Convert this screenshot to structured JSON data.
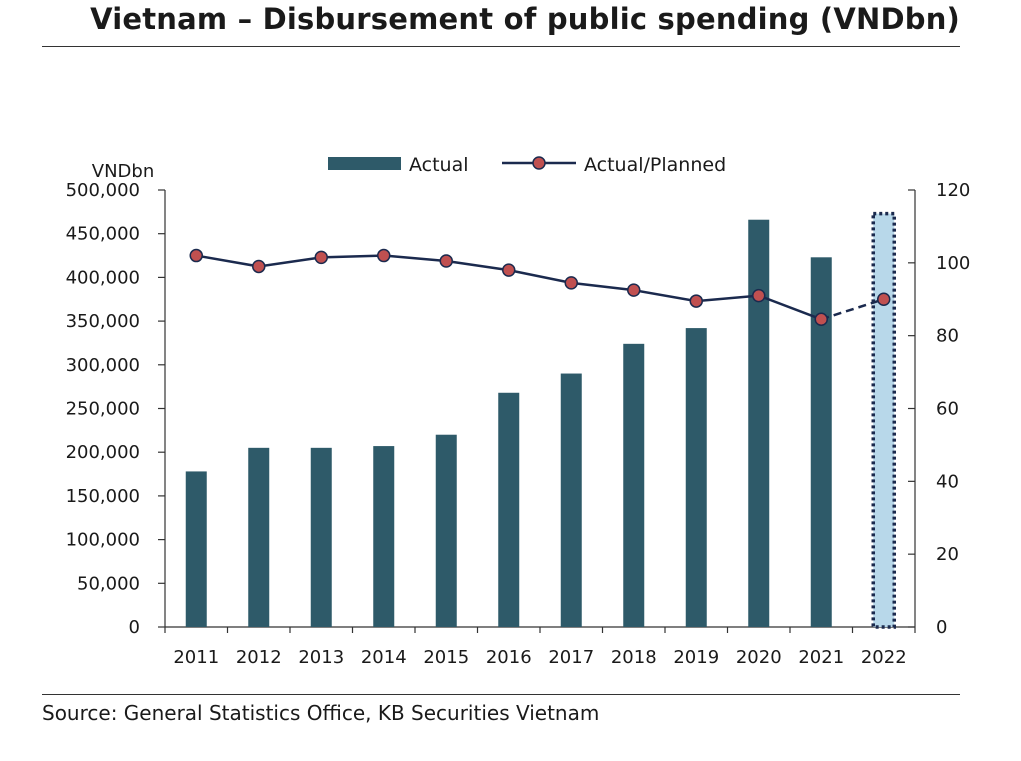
{
  "title": "Vietnam – Disbursement of public spending (VNDbn)",
  "source": "Source: General Statistics Office, KB Securities Vietnam",
  "chart_data": {
    "type": "bar",
    "title": "Vietnam – Disbursement of public spending (VNDbn)",
    "categories": [
      "2011",
      "2012",
      "2013",
      "2014",
      "2015",
      "2016",
      "2017",
      "2018",
      "2019",
      "2020",
      "2021",
      "2022"
    ],
    "y_unit_label": "VNDbn",
    "ylim": [
      0,
      500000
    ],
    "yticks": [
      "0",
      "50,000",
      "100,000",
      "150,000",
      "200,000",
      "250,000",
      "300,000",
      "350,000",
      "400,000",
      "450,000",
      "500,000"
    ],
    "y2lim": [
      0,
      120
    ],
    "y2ticks": [
      "0",
      "20",
      "40",
      "60",
      "80",
      "100",
      "120"
    ],
    "legend_position": "top-center",
    "series": [
      {
        "name": "Actual",
        "type": "bar",
        "axis": "left",
        "color": "#2e5a69",
        "values": [
          178000,
          205000,
          205000,
          207000,
          220000,
          268000,
          290000,
          324000,
          342000,
          466000,
          423000,
          null
        ]
      },
      {
        "name": "Actual/Planned",
        "type": "line",
        "axis": "right",
        "color": "#1b2a4e",
        "marker_color": "#c05050",
        "values": [
          102,
          99,
          101.5,
          102,
          100.5,
          98,
          94.5,
          92.5,
          89.5,
          91,
          84.5,
          90
        ]
      }
    ],
    "forecast": {
      "category": "2022",
      "highlight_value": 473000,
      "fill": "#b8d8ea",
      "border": "#1b2a4e",
      "line_style": "dashed"
    },
    "grid": false
  }
}
